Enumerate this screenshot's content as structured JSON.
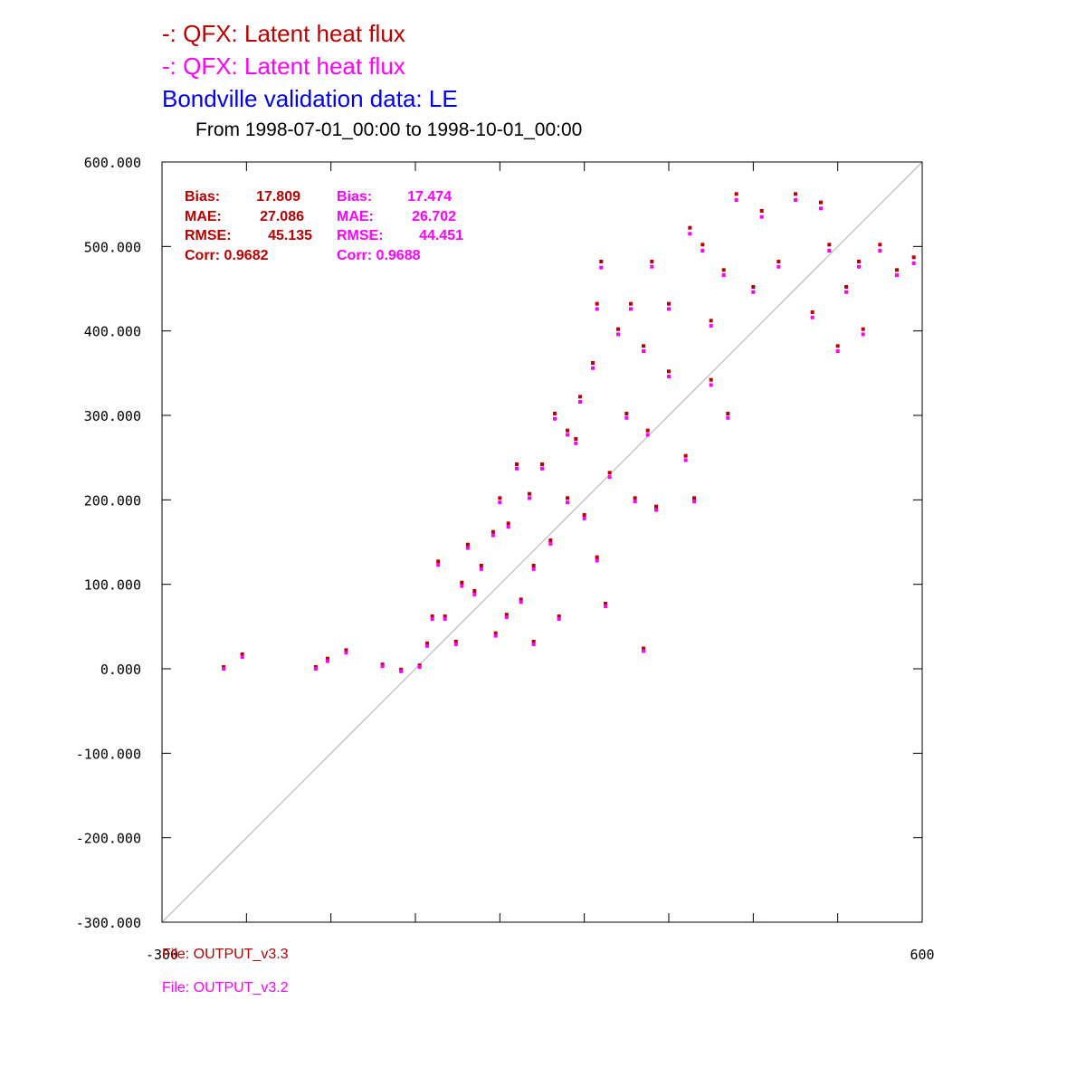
{
  "titles": {
    "line1": "-:  QFX: Latent heat flux",
    "line2": "-:  QFX: Latent heat flux",
    "line3": "Bondville validation data:  LE",
    "period": "From 1998-07-01_00:00 to 1998-10-01_00:00"
  },
  "files": {
    "file1": "File: OUTPUT_v3.3",
    "file2": "File: OUTPUT_v3.2"
  },
  "colors": {
    "series1": "#bb0000",
    "series2": "#ff00ff",
    "validation": "#0000ee",
    "axis": "#000000",
    "one_to_one_line": "#b0b0b0"
  },
  "stats": {
    "series1": {
      "bias_label": "Bias:",
      "bias": "17.809",
      "mae_label": "MAE:",
      "mae": "27.086",
      "rmse_label": "RMSE:",
      "rmse": "45.135",
      "corr": "Corr: 0.9682"
    },
    "series2": {
      "bias_label": "Bias:",
      "bias": "17.474",
      "mae_label": "MAE:",
      "mae": "26.702",
      "rmse_label": "RMSE:",
      "rmse": "44.451",
      "corr": "Corr: 0.9688"
    }
  },
  "chart_data": {
    "type": "scatter",
    "title": "Bondville validation data:  LE",
    "subtitle": "From 1998-07-01_00:00 to 1998-10-01_00:00",
    "xlabel": "",
    "ylabel": "",
    "xlim": [
      -300,
      600
    ],
    "ylim": [
      -300,
      600
    ],
    "x_tick_labels": [
      "-300",
      "600"
    ],
    "y_tick_labels": [
      "600.000",
      "500.000",
      "400.000",
      "300.000",
      "200.000",
      "100.000",
      "0.000",
      "-100.000",
      "-200.000",
      "-300.000"
    ],
    "y_ticks": [
      600,
      500,
      400,
      300,
      200,
      100,
      0,
      -100,
      -200,
      -300
    ],
    "x_ticks": [
      -300,
      -200,
      -100,
      0,
      100,
      200,
      300,
      400,
      500,
      600
    ],
    "reference_line": {
      "from": [
        -300,
        -300
      ],
      "to": [
        600,
        600
      ]
    },
    "grid": false,
    "series": [
      {
        "name": "QFX: Latent heat flux",
        "file": "File: OUTPUT_v3.3",
        "points": [
          [
            -227,
            0
          ],
          [
            -205,
            15
          ],
          [
            -118,
            0
          ],
          [
            -104,
            10
          ],
          [
            -82,
            20
          ],
          [
            -39,
            3
          ],
          [
            -17,
            -3
          ],
          [
            5,
            2
          ],
          [
            14,
            28
          ],
          [
            20,
            60
          ],
          [
            27,
            125
          ],
          [
            35,
            60
          ],
          [
            48,
            30
          ],
          [
            55,
            100
          ],
          [
            62,
            145
          ],
          [
            70,
            90
          ],
          [
            78,
            120
          ],
          [
            92,
            160
          ],
          [
            100,
            200
          ],
          [
            110,
            170
          ],
          [
            120,
            240
          ],
          [
            135,
            205
          ],
          [
            150,
            240
          ],
          [
            165,
            300
          ],
          [
            180,
            280
          ],
          [
            195,
            320
          ],
          [
            210,
            360
          ],
          [
            220,
            480
          ],
          [
            240,
            400
          ],
          [
            255,
            430
          ],
          [
            270,
            380
          ],
          [
            280,
            480
          ],
          [
            300,
            430
          ],
          [
            325,
            520
          ],
          [
            340,
            500
          ],
          [
            350,
            410
          ],
          [
            365,
            470
          ],
          [
            380,
            560
          ],
          [
            400,
            450
          ],
          [
            410,
            540
          ],
          [
            430,
            480
          ],
          [
            450,
            560
          ],
          [
            470,
            420
          ],
          [
            480,
            550
          ],
          [
            490,
            500
          ],
          [
            500,
            380
          ],
          [
            510,
            450
          ],
          [
            525,
            480
          ],
          [
            530,
            400
          ],
          [
            550,
            500
          ],
          [
            570,
            470
          ],
          [
            590,
            485
          ],
          [
            215,
            430
          ],
          [
            250,
            300
          ],
          [
            275,
            280
          ],
          [
            230,
            230
          ],
          [
            180,
            200
          ],
          [
            160,
            150
          ],
          [
            140,
            120
          ],
          [
            125,
            80
          ],
          [
            108,
            62
          ],
          [
            95,
            40
          ],
          [
            140,
            30
          ],
          [
            170,
            60
          ],
          [
            215,
            130
          ],
          [
            225,
            75
          ],
          [
            270,
            22
          ],
          [
            200,
            180
          ],
          [
            260,
            200
          ],
          [
            285,
            190
          ],
          [
            320,
            250
          ],
          [
            330,
            200
          ],
          [
            370,
            300
          ],
          [
            350,
            340
          ],
          [
            300,
            350
          ],
          [
            190,
            270
          ]
        ]
      },
      {
        "name": "QFX: Latent heat flux",
        "file": "File: OUTPUT_v3.2",
        "points": [
          [
            -227,
            0
          ],
          [
            -205,
            14
          ],
          [
            -118,
            0
          ],
          [
            -104,
            9
          ],
          [
            -82,
            19
          ],
          [
            -39,
            3
          ],
          [
            -17,
            -3
          ],
          [
            5,
            2
          ],
          [
            14,
            27
          ],
          [
            20,
            59
          ],
          [
            27,
            123
          ],
          [
            35,
            59
          ],
          [
            48,
            29
          ],
          [
            55,
            98
          ],
          [
            62,
            143
          ],
          [
            70,
            88
          ],
          [
            78,
            118
          ],
          [
            92,
            158
          ],
          [
            100,
            197
          ],
          [
            110,
            168
          ],
          [
            120,
            237
          ],
          [
            135,
            202
          ],
          [
            150,
            237
          ],
          [
            165,
            296
          ],
          [
            180,
            277
          ],
          [
            195,
            316
          ],
          [
            210,
            356
          ],
          [
            220,
            475
          ],
          [
            240,
            396
          ],
          [
            255,
            426
          ],
          [
            270,
            376
          ],
          [
            280,
            476
          ],
          [
            300,
            426
          ],
          [
            325,
            515
          ],
          [
            340,
            495
          ],
          [
            350,
            406
          ],
          [
            365,
            466
          ],
          [
            380,
            555
          ],
          [
            400,
            446
          ],
          [
            410,
            535
          ],
          [
            430,
            476
          ],
          [
            450,
            555
          ],
          [
            470,
            416
          ],
          [
            480,
            545
          ],
          [
            490,
            495
          ],
          [
            500,
            376
          ],
          [
            510,
            446
          ],
          [
            525,
            476
          ],
          [
            530,
            396
          ],
          [
            550,
            495
          ],
          [
            570,
            466
          ],
          [
            590,
            480
          ],
          [
            215,
            426
          ],
          [
            250,
            297
          ],
          [
            275,
            277
          ],
          [
            230,
            227
          ],
          [
            180,
            197
          ],
          [
            160,
            148
          ],
          [
            140,
            118
          ],
          [
            125,
            79
          ],
          [
            108,
            61
          ],
          [
            95,
            39
          ],
          [
            140,
            29
          ],
          [
            170,
            59
          ],
          [
            215,
            128
          ],
          [
            225,
            74
          ],
          [
            270,
            21
          ],
          [
            200,
            178
          ],
          [
            260,
            198
          ],
          [
            285,
            188
          ],
          [
            320,
            247
          ],
          [
            330,
            198
          ],
          [
            370,
            297
          ],
          [
            350,
            336
          ],
          [
            300,
            346
          ],
          [
            190,
            267
          ]
        ]
      }
    ]
  }
}
